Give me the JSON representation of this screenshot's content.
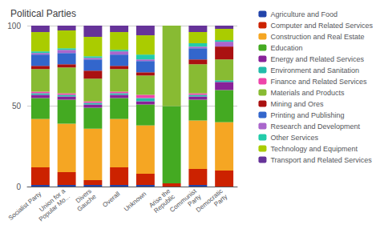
{
  "chart_data": {
    "type": "bar",
    "title": "Political Parties",
    "categories": [
      "Socialist Party",
      "Union for a\nPopular Mo...",
      "Divers\nGauche",
      "Overall",
      "Unknown",
      "Arise the\nRepublic",
      "Communist\nParty",
      "Democratic\nParty"
    ],
    "series": [
      {
        "name": "Agriculture and Food",
        "color": "#2244aa",
        "values": [
          1,
          1,
          1,
          1,
          1,
          0,
          1,
          0
        ]
      },
      {
        "name": "Computer and Related Services",
        "color": "#cc2200",
        "values": [
          11,
          8,
          3,
          11,
          7,
          2,
          10,
          10
        ]
      },
      {
        "name": "Construction and Real Estate",
        "color": "#f5a623",
        "values": [
          30,
          30,
          32,
          30,
          30,
          0,
          30,
          30
        ]
      },
      {
        "name": "Education",
        "color": "#44aa22",
        "values": [
          13,
          15,
          13,
          13,
          13,
          48,
          13,
          20
        ]
      },
      {
        "name": "Energy and Related Services",
        "color": "#882299",
        "values": [
          2,
          2,
          2,
          2,
          2,
          0,
          2,
          5
        ]
      },
      {
        "name": "Environment and Sanitation",
        "color": "#22bbaa",
        "values": [
          1,
          1,
          1,
          1,
          2,
          0,
          1,
          1
        ]
      },
      {
        "name": "Finance and Related Services",
        "color": "#ee44aa",
        "values": [
          1,
          1,
          1,
          1,
          2,
          0,
          1,
          0
        ]
      },
      {
        "name": "Materials and Products",
        "color": "#88bb33",
        "values": [
          14,
          16,
          14,
          14,
          12,
          50,
          18,
          13
        ]
      },
      {
        "name": "Mining and Ores",
        "color": "#aa1111",
        "values": [
          2,
          2,
          5,
          2,
          2,
          0,
          3,
          8
        ]
      },
      {
        "name": "Printing and Publishing",
        "color": "#3366cc",
        "values": [
          7,
          7,
          7,
          7,
          7,
          0,
          7,
          0
        ]
      },
      {
        "name": "Research and Development",
        "color": "#aa66cc",
        "values": [
          1,
          2,
          1,
          2,
          1,
          0,
          1,
          3
        ]
      },
      {
        "name": "Other Services",
        "color": "#22ccaa",
        "values": [
          1,
          1,
          1,
          1,
          3,
          0,
          2,
          1
        ]
      },
      {
        "name": "Technology and Equipment",
        "color": "#aacc00",
        "values": [
          12,
          11,
          12,
          11,
          12,
          0,
          7,
          7
        ]
      },
      {
        "name": "Transport and Related Services",
        "color": "#663399",
        "values": [
          4,
          3,
          7,
          4,
          6,
          0,
          4,
          2
        ]
      }
    ],
    "stacked": true,
    "ylim": [
      0,
      100
    ],
    "yticks": [
      0,
      50,
      100
    ],
    "grid": true,
    "legend": "right"
  }
}
